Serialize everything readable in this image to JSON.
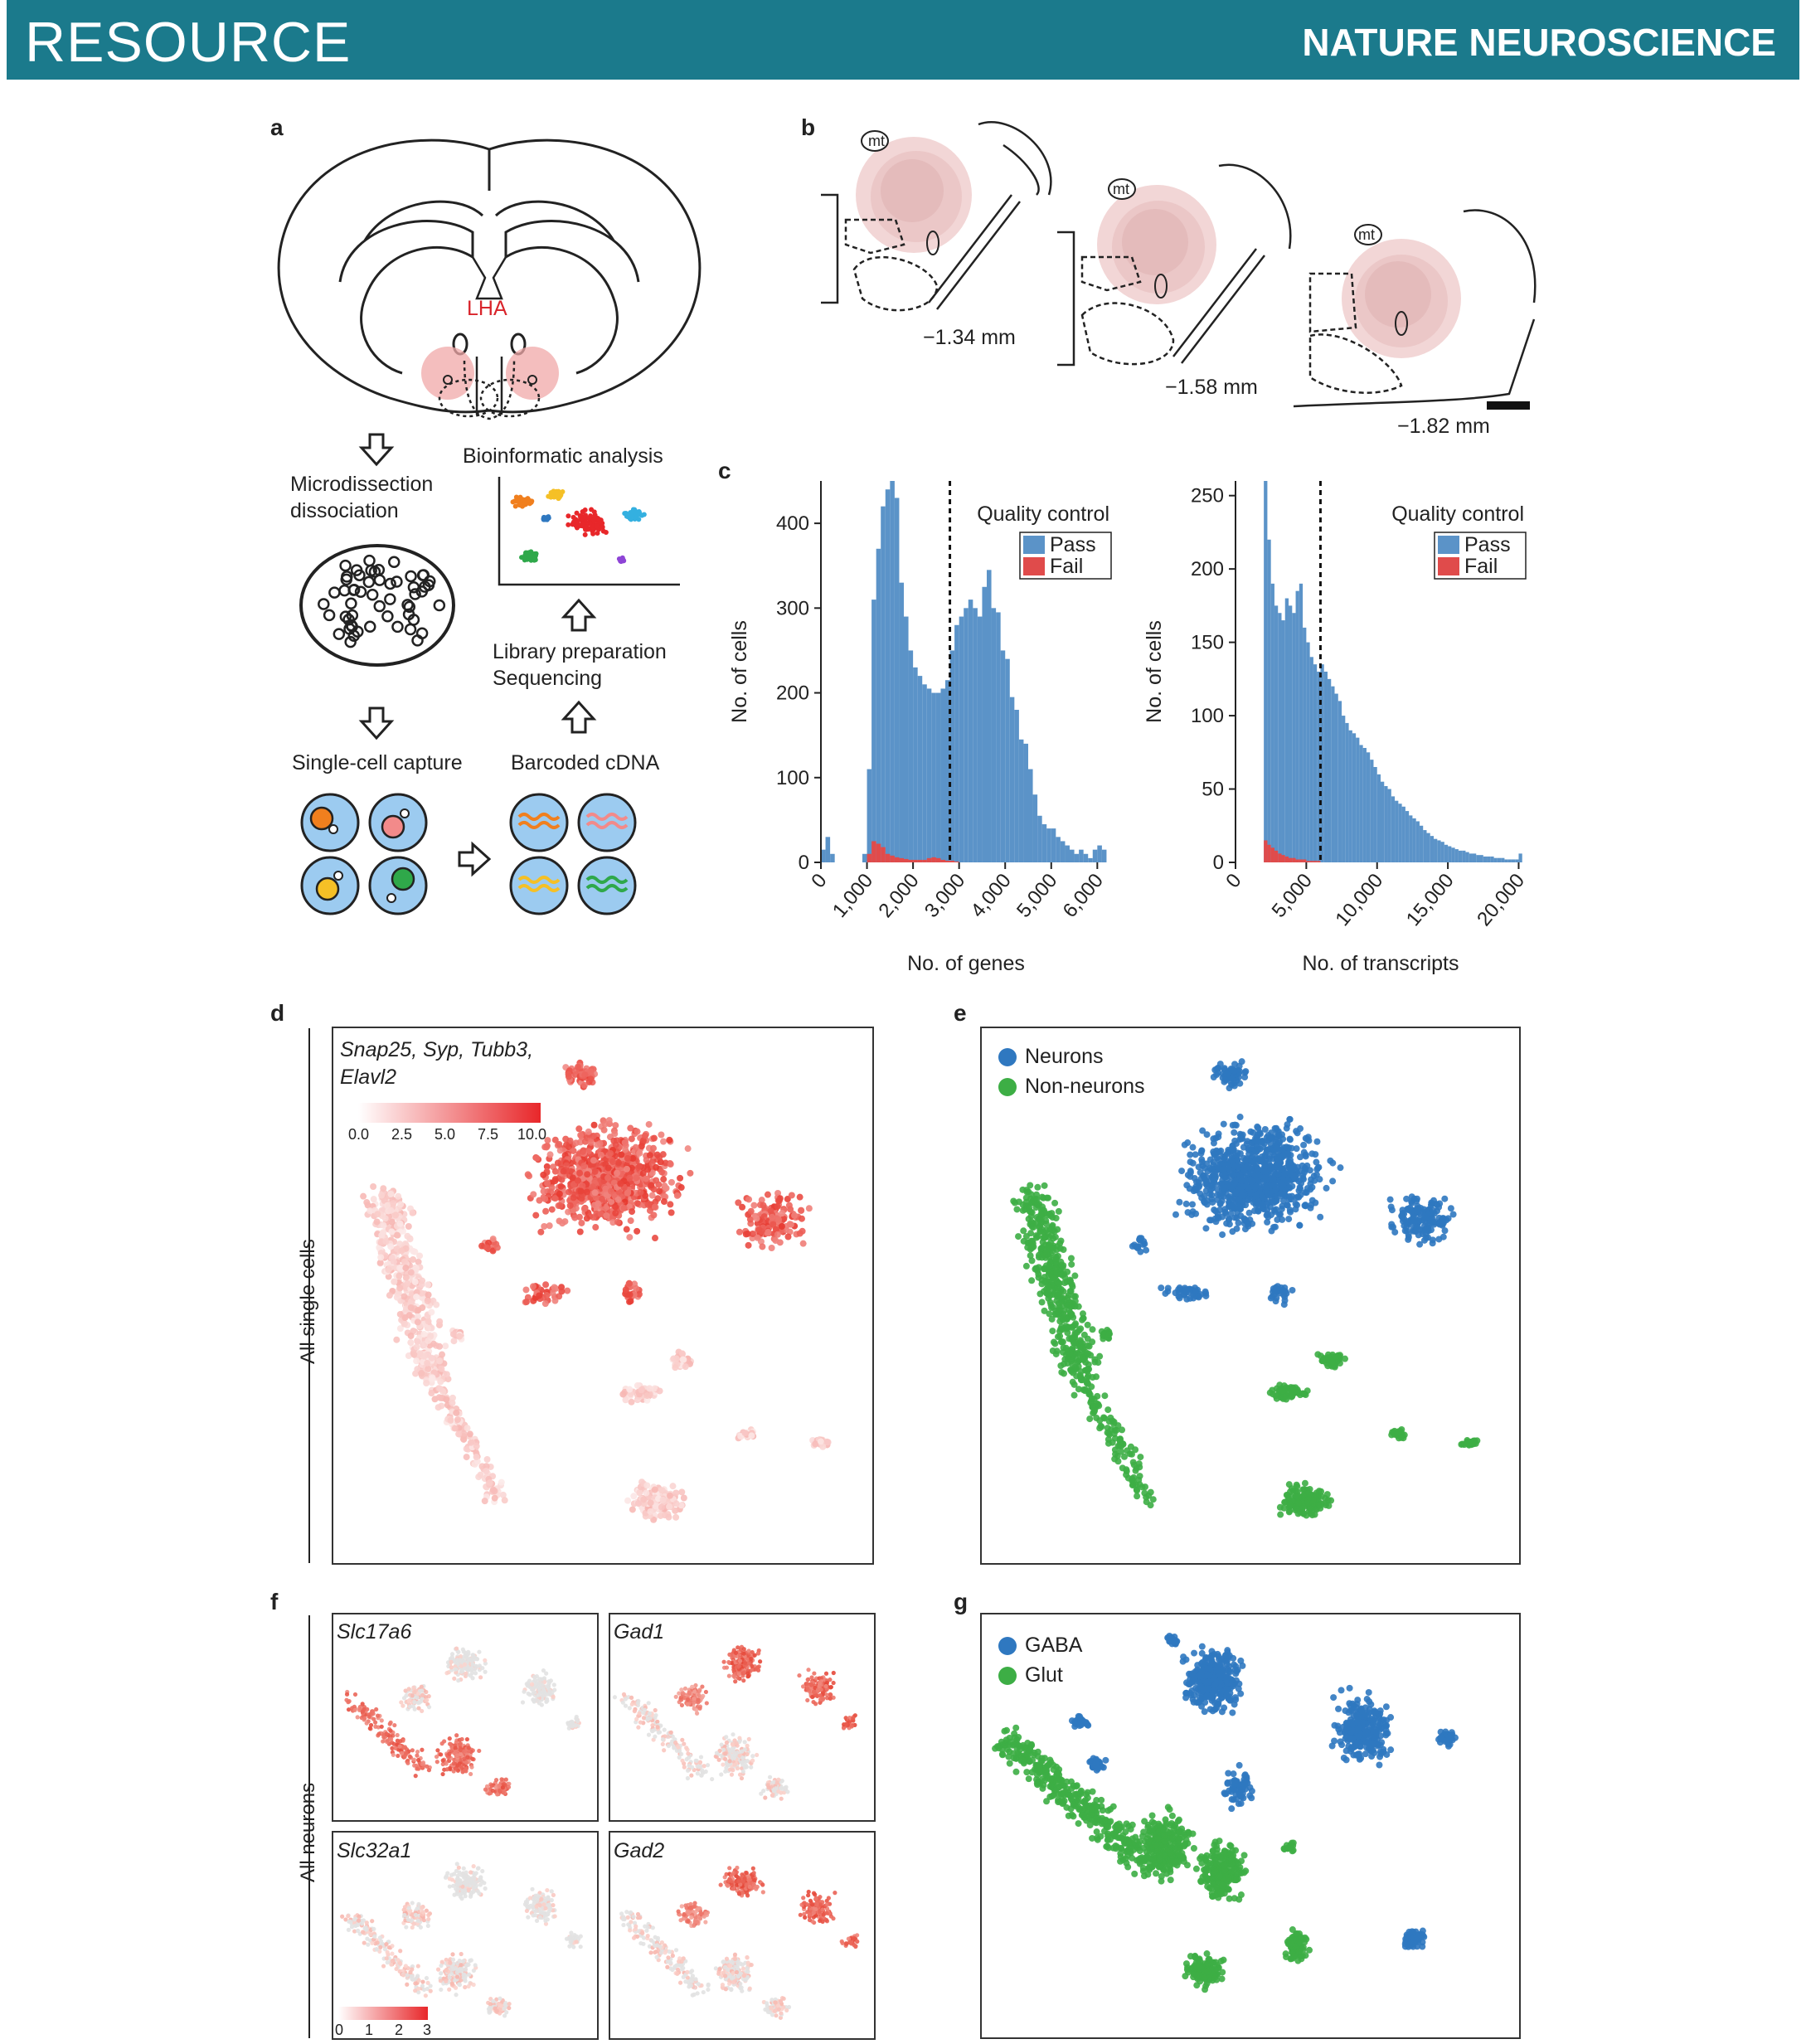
{
  "header": {
    "section": "RESOURCE",
    "journal": "NATURE NEUROSCIENCE"
  },
  "panels": {
    "a": {
      "label": "a",
      "region": "LHA",
      "steps": {
        "microdissection": "Microdissection",
        "dissociation": "dissociation",
        "capture": "Single-cell capture",
        "cdna": "Barcoded cDNA",
        "library": "Library preparation",
        "sequencing": "Sequencing",
        "bioinfo": "Bioinformatic analysis"
      }
    },
    "b": {
      "label": "b",
      "sections": [
        "−1.34 mm",
        "−1.58 mm",
        "−1.82 mm"
      ],
      "mt": "mt",
      "f": "f"
    },
    "c": {
      "label": "c"
    },
    "d": {
      "label": "d",
      "genes": "Snap25, Syp, Tubb3,",
      "genes2": "Elavl2",
      "colorbar_ticks": [
        "0.0",
        "2.5",
        "5.0",
        "7.5",
        "10.0"
      ],
      "side_label": "All single cells"
    },
    "e": {
      "label": "e",
      "legend": [
        "Neurons",
        "Non-neurons"
      ],
      "colors": [
        "#2f78c0",
        "#3dae45"
      ]
    },
    "f": {
      "label": "f",
      "genes": [
        "Slc17a6",
        "Gad1",
        "Slc32a1",
        "Gad2"
      ],
      "colorbar_ticks": [
        "0",
        "1",
        "2",
        "3"
      ],
      "side_label": "All neurons"
    },
    "g": {
      "label": "g",
      "legend": [
        "GABA",
        "Glut"
      ],
      "colors": [
        "#2f78c0",
        "#3dae45"
      ]
    }
  },
  "chart_data": [
    {
      "type": "bar",
      "xlabel": "No. of genes",
      "ylabel": "No. of cells",
      "xlim": [
        0,
        6300
      ],
      "ylim": [
        0,
        450
      ],
      "xticks": [
        "0",
        "1,000",
        "2,000",
        "3,000",
        "4,000",
        "5,000",
        "6,000"
      ],
      "yticks": [
        "0",
        "100",
        "200",
        "300",
        "400"
      ],
      "threshold": 2800,
      "legend_title": "Quality control",
      "series": [
        {
          "name": "Pass",
          "color": "#5b93c8",
          "bins": [
            0,
            100,
            200,
            300,
            400,
            500,
            600,
            700,
            800,
            900,
            1000,
            1100,
            1200,
            1300,
            1400,
            1500,
            1600,
            1700,
            1800,
            1900,
            2000,
            2100,
            2200,
            2300,
            2400,
            2500,
            2600,
            2700,
            2800,
            2900,
            3000,
            3100,
            3200,
            3300,
            3400,
            3500,
            3600,
            3700,
            3800,
            3900,
            4000,
            4100,
            4200,
            4300,
            4400,
            4500,
            4600,
            4700,
            4800,
            4900,
            5000,
            5100,
            5200,
            5300,
            5400,
            5500,
            5600,
            5700,
            5800,
            5900,
            6000,
            6100
          ],
          "values": [
            15,
            30,
            10,
            0,
            0,
            0,
            0,
            0,
            0,
            10,
            110,
            310,
            370,
            420,
            440,
            450,
            430,
            330,
            290,
            250,
            230,
            220,
            210,
            205,
            200,
            200,
            205,
            215,
            250,
            280,
            290,
            300,
            310,
            300,
            290,
            325,
            345,
            300,
            295,
            250,
            240,
            195,
            180,
            145,
            140,
            110,
            80,
            55,
            45,
            40,
            40,
            30,
            25,
            20,
            15,
            10,
            15,
            10,
            5,
            15,
            20,
            15
          ]
        },
        {
          "name": "Fail",
          "color": "#e04b4b",
          "bins": [
            1000,
            1100,
            1200,
            1300,
            1400,
            1500,
            1600,
            1700,
            1800,
            1900,
            2000,
            2100,
            2200,
            2300,
            2400,
            2500,
            2600,
            2700,
            2800,
            2900
          ],
          "values": [
            10,
            25,
            22,
            18,
            10,
            8,
            6,
            5,
            4,
            3,
            3,
            3,
            3,
            5,
            6,
            5,
            3,
            2,
            2,
            1
          ]
        }
      ]
    },
    {
      "type": "bar",
      "xlabel": "No. of transcripts",
      "ylabel": "No. of cells",
      "xlim": [
        0,
        20500
      ],
      "ylim": [
        0,
        260
      ],
      "xticks": [
        "0",
        "5,000",
        "10,000",
        "15,000",
        "20,000"
      ],
      "yticks": [
        "0",
        "50",
        "100",
        "150",
        "200",
        "250"
      ],
      "threshold": 6000,
      "legend_title": "Quality control",
      "series": [
        {
          "name": "Pass",
          "color": "#5b93c8",
          "bins": [
            2000,
            2250,
            2500,
            2750,
            3000,
            3250,
            3500,
            3750,
            4000,
            4250,
            4500,
            4750,
            5000,
            5250,
            5500,
            5750,
            6000,
            6250,
            6500,
            6750,
            7000,
            7250,
            7500,
            7750,
            8000,
            8250,
            8500,
            8750,
            9000,
            9250,
            9500,
            9750,
            10000,
            10250,
            10500,
            10750,
            11000,
            11250,
            11500,
            11750,
            12000,
            12250,
            12500,
            12750,
            13000,
            13250,
            13500,
            13750,
            14000,
            14250,
            14500,
            14750,
            15000,
            15250,
            15500,
            15750,
            16000,
            16250,
            16500,
            16750,
            17000,
            17250,
            17500,
            17750,
            18000,
            18250,
            18500,
            18750,
            19000,
            19250,
            19500,
            19750,
            20000
          ],
          "values": [
            260,
            220,
            190,
            175,
            170,
            165,
            180,
            175,
            170,
            185,
            190,
            160,
            150,
            140,
            135,
            130,
            135,
            130,
            125,
            120,
            115,
            110,
            100,
            95,
            90,
            88,
            85,
            80,
            78,
            75,
            70,
            65,
            60,
            55,
            52,
            50,
            45,
            42,
            40,
            38,
            35,
            32,
            30,
            28,
            25,
            22,
            20,
            18,
            16,
            15,
            14,
            12,
            11,
            10,
            9,
            8,
            8,
            7,
            6,
            6,
            5,
            5,
            4,
            4,
            4,
            3,
            3,
            3,
            2,
            2,
            2,
            2,
            6
          ]
        },
        {
          "name": "Fail",
          "color": "#e04b4b",
          "bins": [
            2000,
            2250,
            2500,
            2750,
            3000,
            3250,
            3500,
            3750,
            4000,
            4250,
            4500,
            4750,
            5000,
            5250,
            5500,
            5750
          ],
          "values": [
            15,
            12,
            10,
            8,
            6,
            5,
            4,
            3,
            3,
            2,
            2,
            2,
            1,
            1,
            1,
            1
          ]
        }
      ]
    }
  ]
}
